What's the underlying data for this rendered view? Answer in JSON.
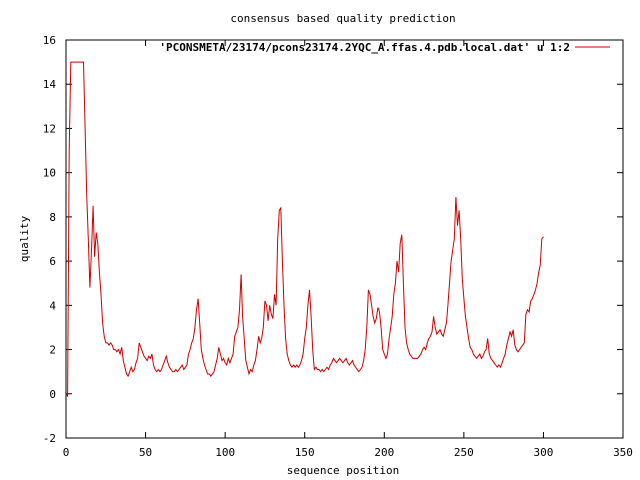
{
  "chart_data": {
    "type": "line",
    "title": "consensus based quality prediction",
    "xlabel": "sequence position",
    "ylabel": "quality",
    "xlim": [
      0,
      350
    ],
    "ylim": [
      -2,
      16
    ],
    "x_ticks": [
      0,
      50,
      100,
      150,
      200,
      250,
      300,
      350
    ],
    "y_ticks": [
      -2,
      0,
      2,
      4,
      6,
      8,
      10,
      12,
      14,
      16
    ],
    "grid": false,
    "legend_position": "top-right",
    "series": [
      {
        "name": "'PCONSMETA/23174/pcons23174.2YQC_A.ffas.4.pdb.local.dat' u 1:2",
        "color": "#cc0000",
        "points": [
          [
            0,
            0
          ],
          [
            1,
            -0.1
          ],
          [
            2,
            11
          ],
          [
            3,
            15
          ],
          [
            5,
            15
          ],
          [
            8,
            15
          ],
          [
            10,
            15
          ],
          [
            11,
            15
          ],
          [
            12,
            12
          ],
          [
            13,
            9
          ],
          [
            14,
            7
          ],
          [
            15,
            4.8
          ],
          [
            16,
            6.5
          ],
          [
            17,
            8.5
          ],
          [
            18,
            6.2
          ],
          [
            19,
            7.3
          ],
          [
            20,
            6.8
          ],
          [
            21,
            5.5
          ],
          [
            22,
            4.5
          ],
          [
            23,
            3.2
          ],
          [
            24,
            2.6
          ],
          [
            25,
            2.3
          ],
          [
            26,
            2.3
          ],
          [
            27,
            2.2
          ],
          [
            28,
            2.3
          ],
          [
            29,
            2.2
          ],
          [
            30,
            2.0
          ],
          [
            31,
            2.0
          ],
          [
            32,
            1.9
          ],
          [
            33,
            2.0
          ],
          [
            34,
            1.8
          ],
          [
            35,
            2.1
          ],
          [
            36,
            1.5
          ],
          [
            37,
            1.2
          ],
          [
            38,
            0.9
          ],
          [
            39,
            0.8
          ],
          [
            40,
            1.0
          ],
          [
            41,
            1.2
          ],
          [
            42,
            1.0
          ],
          [
            43,
            1.1
          ],
          [
            44,
            1.4
          ],
          [
            45,
            1.6
          ],
          [
            46,
            2.3
          ],
          [
            47,
            2.1
          ],
          [
            48,
            1.9
          ],
          [
            49,
            1.7
          ],
          [
            50,
            1.6
          ],
          [
            51,
            1.5
          ],
          [
            52,
            1.7
          ],
          [
            53,
            1.6
          ],
          [
            54,
            1.8
          ],
          [
            55,
            1.3
          ],
          [
            56,
            1.1
          ],
          [
            57,
            1.0
          ],
          [
            58,
            1.1
          ],
          [
            59,
            1.0
          ],
          [
            60,
            1.1
          ],
          [
            61,
            1.3
          ],
          [
            62,
            1.5
          ],
          [
            63,
            1.7
          ],
          [
            64,
            1.4
          ],
          [
            65,
            1.2
          ],
          [
            66,
            1.1
          ],
          [
            67,
            1.0
          ],
          [
            68,
            1.0
          ],
          [
            69,
            1.1
          ],
          [
            70,
            1.0
          ],
          [
            71,
            1.1
          ],
          [
            72,
            1.2
          ],
          [
            73,
            1.3
          ],
          [
            74,
            1.1
          ],
          [
            75,
            1.2
          ],
          [
            76,
            1.3
          ],
          [
            77,
            1.8
          ],
          [
            78,
            2.0
          ],
          [
            79,
            2.3
          ],
          [
            80,
            2.5
          ],
          [
            81,
            3.0
          ],
          [
            82,
            3.8
          ],
          [
            83,
            4.3
          ],
          [
            84,
            3.2
          ],
          [
            85,
            2.0
          ],
          [
            86,
            1.6
          ],
          [
            87,
            1.3
          ],
          [
            88,
            1.1
          ],
          [
            89,
            0.9
          ],
          [
            90,
            0.9
          ],
          [
            91,
            0.8
          ],
          [
            92,
            0.9
          ],
          [
            93,
            1.0
          ],
          [
            94,
            1.3
          ],
          [
            95,
            1.6
          ],
          [
            96,
            2.1
          ],
          [
            97,
            1.8
          ],
          [
            98,
            1.5
          ],
          [
            99,
            1.6
          ],
          [
            100,
            1.4
          ],
          [
            101,
            1.3
          ],
          [
            102,
            1.6
          ],
          [
            103,
            1.4
          ],
          [
            104,
            1.6
          ],
          [
            105,
            1.8
          ],
          [
            106,
            2.6
          ],
          [
            107,
            2.8
          ],
          [
            108,
            3.0
          ],
          [
            109,
            3.8
          ],
          [
            110,
            5.4
          ],
          [
            111,
            3.5
          ],
          [
            112,
            2.5
          ],
          [
            113,
            1.5
          ],
          [
            114,
            1.2
          ],
          [
            115,
            0.9
          ],
          [
            116,
            1.1
          ],
          [
            117,
            1.0
          ],
          [
            118,
            1.3
          ],
          [
            119,
            1.5
          ],
          [
            120,
            2.0
          ],
          [
            121,
            2.6
          ],
          [
            122,
            2.3
          ],
          [
            123,
            2.5
          ],
          [
            124,
            3.0
          ],
          [
            125,
            4.2
          ],
          [
            126,
            4.0
          ],
          [
            127,
            3.3
          ],
          [
            128,
            4.0
          ],
          [
            129,
            3.6
          ],
          [
            130,
            3.4
          ],
          [
            131,
            4.5
          ],
          [
            132,
            4.0
          ],
          [
            133,
            7.0
          ],
          [
            134,
            8.3
          ],
          [
            135,
            8.4
          ],
          [
            136,
            6.0
          ],
          [
            137,
            4.0
          ],
          [
            138,
            2.5
          ],
          [
            139,
            1.8
          ],
          [
            140,
            1.5
          ],
          [
            141,
            1.3
          ],
          [
            142,
            1.2
          ],
          [
            143,
            1.3
          ],
          [
            144,
            1.2
          ],
          [
            145,
            1.3
          ],
          [
            146,
            1.2
          ],
          [
            147,
            1.3
          ],
          [
            148,
            1.5
          ],
          [
            149,
            1.8
          ],
          [
            150,
            2.5
          ],
          [
            151,
            3.0
          ],
          [
            152,
            4.0
          ],
          [
            153,
            4.7
          ],
          [
            154,
            3.5
          ],
          [
            155,
            2.0
          ],
          [
            156,
            1.1
          ],
          [
            157,
            1.2
          ],
          [
            158,
            1.1
          ],
          [
            159,
            1.1
          ],
          [
            160,
            1.0
          ],
          [
            161,
            1.1
          ],
          [
            162,
            1.0
          ],
          [
            163,
            1.1
          ],
          [
            164,
            1.2
          ],
          [
            165,
            1.1
          ],
          [
            166,
            1.3
          ],
          [
            167,
            1.4
          ],
          [
            168,
            1.6
          ],
          [
            169,
            1.5
          ],
          [
            170,
            1.4
          ],
          [
            171,
            1.5
          ],
          [
            172,
            1.6
          ],
          [
            173,
            1.5
          ],
          [
            174,
            1.4
          ],
          [
            175,
            1.5
          ],
          [
            176,
            1.6
          ],
          [
            177,
            1.4
          ],
          [
            178,
            1.3
          ],
          [
            179,
            1.4
          ],
          [
            180,
            1.5
          ],
          [
            181,
            1.3
          ],
          [
            182,
            1.2
          ],
          [
            183,
            1.1
          ],
          [
            184,
            1.0
          ],
          [
            185,
            1.1
          ],
          [
            186,
            1.2
          ],
          [
            187,
            1.5
          ],
          [
            188,
            2.0
          ],
          [
            189,
            3.0
          ],
          [
            190,
            4.7
          ],
          [
            191,
            4.5
          ],
          [
            192,
            4.0
          ],
          [
            193,
            3.5
          ],
          [
            194,
            3.2
          ],
          [
            195,
            3.4
          ],
          [
            196,
            3.9
          ],
          [
            197,
            3.7
          ],
          [
            198,
            3.0
          ],
          [
            199,
            2.0
          ],
          [
            200,
            1.8
          ],
          [
            201,
            1.6
          ],
          [
            202,
            1.8
          ],
          [
            203,
            2.5
          ],
          [
            204,
            3.0
          ],
          [
            205,
            3.5
          ],
          [
            206,
            4.5
          ],
          [
            207,
            5.0
          ],
          [
            208,
            6.0
          ],
          [
            209,
            5.5
          ],
          [
            210,
            6.8
          ],
          [
            211,
            7.2
          ],
          [
            212,
            5.0
          ],
          [
            213,
            3.0
          ],
          [
            214,
            2.3
          ],
          [
            215,
            2.0
          ],
          [
            216,
            1.8
          ],
          [
            217,
            1.7
          ],
          [
            218,
            1.6
          ],
          [
            219,
            1.6
          ],
          [
            220,
            1.6
          ],
          [
            221,
            1.6
          ],
          [
            222,
            1.7
          ],
          [
            223,
            1.8
          ],
          [
            224,
            2.0
          ],
          [
            225,
            2.1
          ],
          [
            226,
            2.0
          ],
          [
            227,
            2.3
          ],
          [
            228,
            2.5
          ],
          [
            229,
            2.6
          ],
          [
            230,
            2.8
          ],
          [
            231,
            3.5
          ],
          [
            232,
            3.0
          ],
          [
            233,
            2.7
          ],
          [
            234,
            2.8
          ],
          [
            235,
            2.9
          ],
          [
            236,
            2.7
          ],
          [
            237,
            2.6
          ],
          [
            238,
            2.9
          ],
          [
            239,
            3.2
          ],
          [
            240,
            4.0
          ],
          [
            241,
            5.0
          ],
          [
            242,
            6.0
          ],
          [
            243,
            6.5
          ],
          [
            244,
            7.0
          ],
          [
            245,
            8.9
          ],
          [
            246,
            7.6
          ],
          [
            247,
            8.3
          ],
          [
            248,
            7.0
          ],
          [
            249,
            5.2
          ],
          [
            250,
            4.3
          ],
          [
            251,
            3.5
          ],
          [
            252,
            3.0
          ],
          [
            253,
            2.5
          ],
          [
            254,
            2.1
          ],
          [
            255,
            2.0
          ],
          [
            256,
            1.8
          ],
          [
            257,
            1.7
          ],
          [
            258,
            1.6
          ],
          [
            259,
            1.7
          ],
          [
            260,
            1.8
          ],
          [
            261,
            1.6
          ],
          [
            262,
            1.7
          ],
          [
            263,
            1.9
          ],
          [
            264,
            2.0
          ],
          [
            265,
            2.5
          ],
          [
            266,
            1.8
          ],
          [
            267,
            1.6
          ],
          [
            268,
            1.5
          ],
          [
            269,
            1.4
          ],
          [
            270,
            1.3
          ],
          [
            271,
            1.2
          ],
          [
            272,
            1.3
          ],
          [
            273,
            1.2
          ],
          [
            274,
            1.4
          ],
          [
            275,
            1.6
          ],
          [
            276,
            1.8
          ],
          [
            277,
            2.2
          ],
          [
            278,
            2.5
          ],
          [
            279,
            2.8
          ],
          [
            280,
            2.6
          ],
          [
            281,
            2.9
          ],
          [
            282,
            2.2
          ],
          [
            283,
            2.0
          ],
          [
            284,
            1.9
          ],
          [
            285,
            2.0
          ],
          [
            286,
            2.1
          ],
          [
            287,
            2.2
          ],
          [
            288,
            2.3
          ],
          [
            289,
            3.6
          ],
          [
            290,
            3.8
          ],
          [
            291,
            3.7
          ],
          [
            292,
            4.2
          ],
          [
            293,
            4.3
          ],
          [
            294,
            4.5
          ],
          [
            295,
            4.7
          ],
          [
            296,
            5.0
          ],
          [
            297,
            5.5
          ],
          [
            298,
            5.8
          ],
          [
            299,
            7.0
          ],
          [
            300,
            7.1
          ]
        ]
      }
    ]
  }
}
